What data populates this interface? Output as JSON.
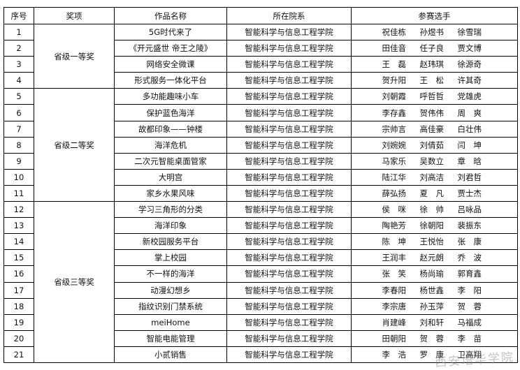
{
  "headers": [
    "序号",
    "奖项",
    "作品名称",
    "所在院系",
    "参赛选手"
  ],
  "groups": [
    {
      "award": "省级一等奖",
      "rows": [
        {
          "no": "1",
          "title": "5G时代来了",
          "dept": "智能科学与信息工程学院",
          "members": [
            "祝佳栋",
            "孙煜书",
            "徐雪瑞"
          ]
        },
        {
          "no": "2",
          "title": "《开元盛世 帝王之陵》",
          "dept": "智能科学与信息工程学院",
          "members": [
            "田佳音",
            "任子良",
            "贾文博"
          ]
        },
        {
          "no": "3",
          "title": "网络安全微课",
          "dept": "智能科学与信息工程学院",
          "members": [
            "王　磊",
            "赵玮琪",
            "徐源奇"
          ]
        },
        {
          "no": "4",
          "title": "形式服务一体化平台",
          "dept": "智能科学与信息工程学院",
          "members": [
            "贺升阳",
            "王　松",
            "许其奇"
          ]
        }
      ]
    },
    {
      "award": "省级二等奖",
      "rows": [
        {
          "no": "5",
          "title": "多功能趣味小车",
          "dept": "智能科学与信息工程学院",
          "members": [
            "刘朝霞",
            "呼哲哲",
            "党雄虎"
          ]
        },
        {
          "no": "6",
          "title": "保护蓝色海洋",
          "dept": "智能科学与信息工程学院",
          "members": [
            "李存鑫",
            "贺伟伟",
            "周　爽"
          ]
        },
        {
          "no": "7",
          "title": "故都印象——钟楼",
          "dept": "智能科学与信息工程学院",
          "members": [
            "宗帅言",
            "高佳豪",
            "白壮伟"
          ]
        },
        {
          "no": "8",
          "title": "海洋危机",
          "dept": "智能科学与信息工程学院",
          "members": [
            "刘婉婉",
            "刘倩茹",
            "闫　坤"
          ]
        },
        {
          "no": "9",
          "title": "二次元智能桌面管家",
          "dept": "智能科学与信息工程学院",
          "members": [
            "马家乐",
            "吴数立",
            "章　晗"
          ]
        },
        {
          "no": "10",
          "title": "大明宫",
          "dept": "智能科学与信息工程学院",
          "members": [
            "陆江华",
            "刘高洁",
            "刘君哲"
          ]
        },
        {
          "no": "11",
          "title": "家乡水果风味",
          "dept": "智能科学与信息工程学院",
          "members": [
            "薛弘扬",
            "夏　凡",
            "贾士杰"
          ]
        }
      ]
    },
    {
      "award": "省级三等奖",
      "rows": [
        {
          "no": "12",
          "title": "学习三角形的分类",
          "dept": "智能科学与信息工程学院",
          "members": [
            "侯　咪",
            "徐　帅",
            "吕咏品"
          ]
        },
        {
          "no": "13",
          "title": "海洋印象",
          "dept": "智能科学与信息工程学院",
          "members": [
            "陶艳芳",
            "徐朝阳",
            "裴振东"
          ]
        },
        {
          "no": "14",
          "title": "新校园服务平台",
          "dept": "智能科学与信息工程学院",
          "members": [
            "陈　坤",
            "王悦怡",
            "张　康"
          ]
        },
        {
          "no": "15",
          "title": "掌上校园",
          "dept": "智能科学与信息工程学院",
          "members": [
            "王润丰",
            "赵元朗",
            "乔　波"
          ]
        },
        {
          "no": "16",
          "title": "不一样的海洋",
          "dept": "智能科学与信息工程学院",
          "members": [
            "张　笑",
            "杨尚瑜",
            "郭育鑫"
          ]
        },
        {
          "no": "17",
          "title": "动漫幻想乡",
          "dept": "智能科学与信息工程学院",
          "members": [
            "李春阳",
            "杨世鑫",
            "李　阳"
          ]
        },
        {
          "no": "18",
          "title": "指纹识别门禁系统",
          "dept": "智能科学与信息工程学院",
          "members": [
            "李宗唐",
            "孙玉萍",
            "贺　蓉"
          ]
        },
        {
          "no": "19",
          "title": "meiHome",
          "dept": "智能科学与信息工程学院",
          "members": [
            "肖建峰",
            "刘和轩",
            "马福成"
          ]
        },
        {
          "no": "20",
          "title": "智能电能管理",
          "dept": "智能科学与信息工程学院",
          "members": [
            "田朝阳",
            "贺　蓉",
            "李　苗"
          ]
        },
        {
          "no": "21",
          "title": "小贰销售",
          "dept": "智能科学与信息工程学院",
          "members": [
            "李　浩",
            "罗　康",
            "卫高翔"
          ]
        }
      ]
    }
  ],
  "watermark": "西安培华学院"
}
